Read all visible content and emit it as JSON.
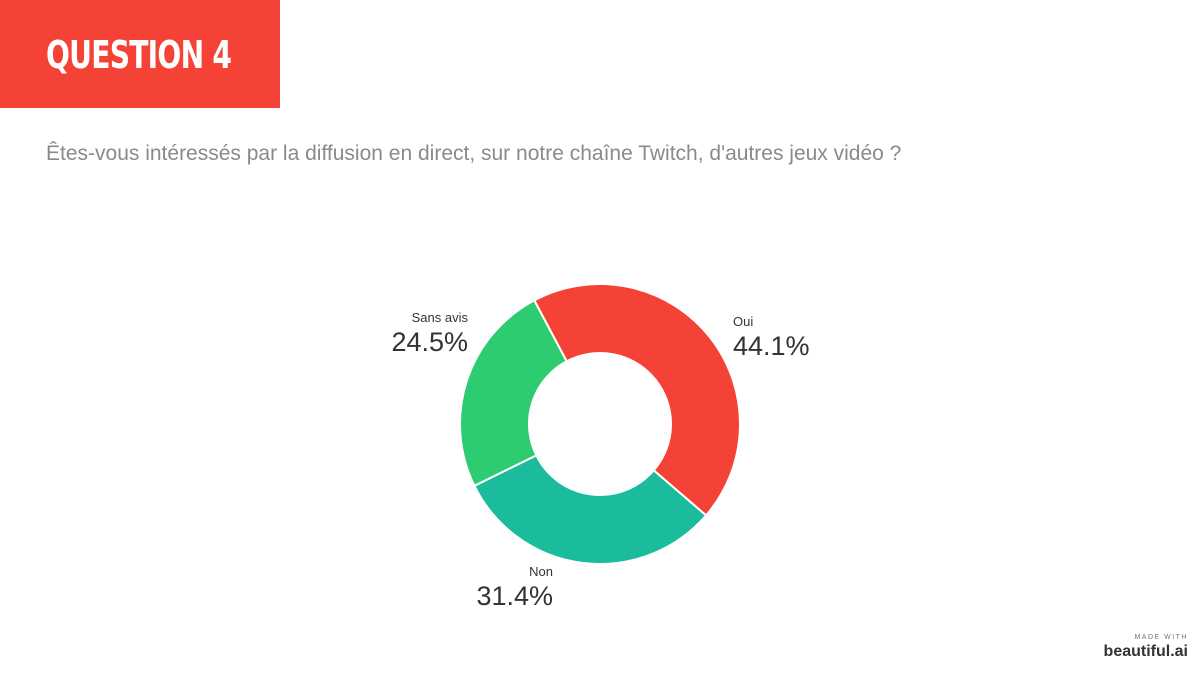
{
  "header": {
    "title": "QUESTION 4"
  },
  "question": {
    "text": "Êtes-vous intéressés par la diffusion en direct, sur notre chaîne Twitch, d'autres jeux vidéo ?"
  },
  "chart_data": {
    "type": "pie",
    "donut": true,
    "slices": [
      {
        "label": "Oui",
        "value": 44.1,
        "display": "44.1%",
        "color": "#f44336"
      },
      {
        "label": "Non",
        "value": 31.4,
        "display": "31.4%",
        "color": "#1abc9c"
      },
      {
        "label": "Sans avis",
        "value": 24.5,
        "display": "24.5%",
        "color": "#2ecc71"
      }
    ]
  },
  "branding": {
    "made_with": "MADE WITH",
    "name": "beautiful.ai"
  }
}
